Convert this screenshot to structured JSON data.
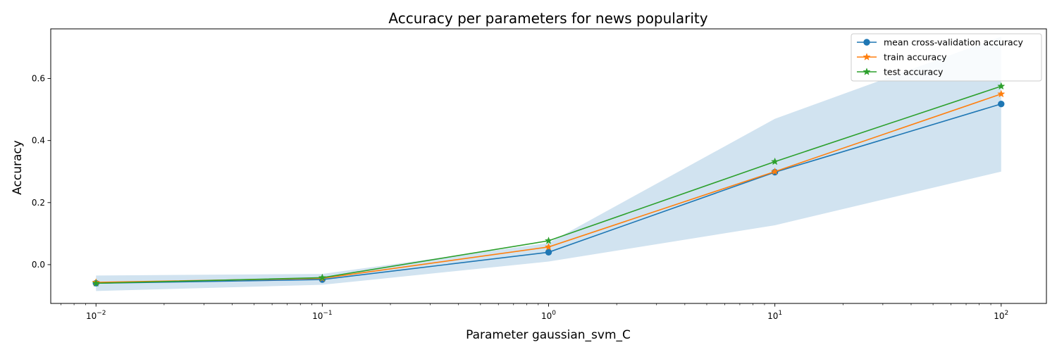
{
  "chart_data": {
    "type": "line",
    "title": "Accuracy per parameters for news popularity",
    "xlabel": "Parameter gaussian_svm_C",
    "ylabel": "Accuracy",
    "xscale": "log",
    "x": [
      0.01,
      0.1,
      1,
      10,
      100
    ],
    "xlim_exp": [
      -2.2,
      2.2
    ],
    "ylim": [
      -0.125,
      0.76
    ],
    "x_ticks": [
      {
        "base": "10",
        "exp": "−2"
      },
      {
        "base": "10",
        "exp": "−1"
      },
      {
        "base": "10",
        "exp": "0"
      },
      {
        "base": "10",
        "exp": "1"
      },
      {
        "base": "10",
        "exp": "2"
      }
    ],
    "y_ticks": [
      0.0,
      0.2,
      0.4,
      0.6
    ],
    "y_tick_labels": [
      "0.0",
      "0.2",
      "0.4",
      "0.6"
    ],
    "band": {
      "lower": [
        -0.085,
        -0.065,
        0.01,
        0.127,
        0.3
      ],
      "upper": [
        -0.035,
        -0.03,
        0.07,
        0.47,
        0.735
      ],
      "color": "#d1e3f0"
    },
    "series": [
      {
        "name": "mean cross-validation accuracy",
        "values": [
          -0.06,
          -0.048,
          0.04,
          0.298,
          0.518
        ],
        "color": "#1f77b4",
        "marker": "circle"
      },
      {
        "name": "train accuracy",
        "values": [
          -0.057,
          -0.044,
          0.057,
          0.3,
          0.55
        ],
        "color": "#ff7f0e",
        "marker": "star"
      },
      {
        "name": "test accuracy",
        "values": [
          -0.06,
          -0.042,
          0.077,
          0.332,
          0.575
        ],
        "color": "#2ca02c",
        "marker": "star"
      }
    ],
    "legend_position": "top-right"
  }
}
